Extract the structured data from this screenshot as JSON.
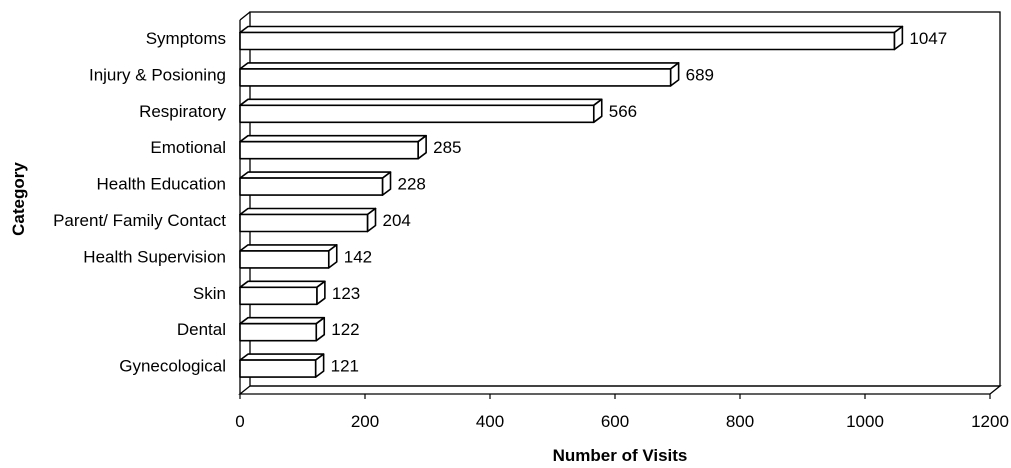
{
  "chart_data": {
    "type": "bar",
    "orientation": "horizontal",
    "three_d": true,
    "categories": [
      "Symptoms",
      "Injury & Posioning",
      "Respiratory",
      "Emotional",
      "Health Education",
      "Parent/ Family Contact",
      "Health Supervision",
      "Skin",
      "Dental",
      "Gynecological"
    ],
    "values": [
      1047,
      689,
      566,
      285,
      228,
      204,
      142,
      123,
      122,
      121
    ],
    "value_labels": [
      "1047",
      "689",
      "566",
      "285",
      "228",
      "204",
      "142",
      "123",
      "122",
      "121"
    ],
    "xlabel": "Number of Visits",
    "ylabel": "Category",
    "xlim": [
      0,
      1200
    ],
    "xticks": [
      0,
      200,
      400,
      600,
      800,
      1000,
      1200
    ],
    "xtick_labels": [
      "0",
      "200",
      "400",
      "600",
      "800",
      "1000",
      "1200"
    ],
    "grid": false,
    "legend": "none",
    "bar_fill": "#ffffff",
    "bar_stroke": "#000000"
  }
}
